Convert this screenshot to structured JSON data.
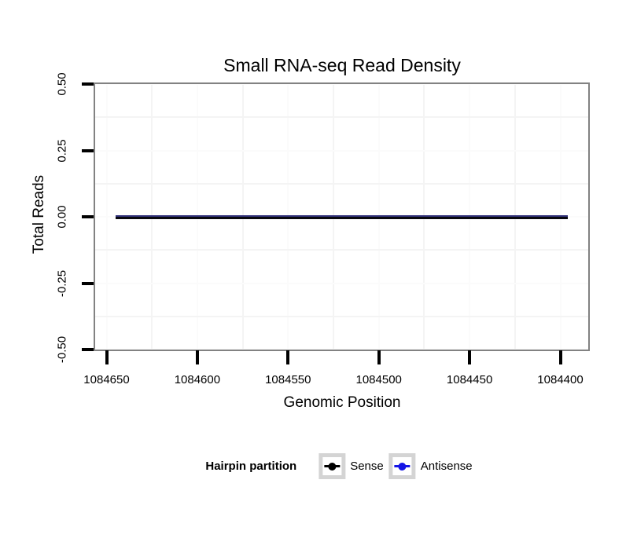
{
  "figure": {
    "background": "#ffffff"
  },
  "chart_data": {
    "type": "line",
    "title": "Small RNA-seq Read Density",
    "xlabel": "Genomic Position",
    "ylabel": "Total Reads",
    "x_axis": {
      "tick_values": [
        1084650,
        1084600,
        1084550,
        1084500,
        1084450,
        1084400
      ],
      "tick_labels": [
        "1084650",
        "1084600",
        "1084550",
        "1084500",
        "1084450",
        "1084400"
      ],
      "reversed": true,
      "range_left_to_right": [
        1084656,
        1084384
      ]
    },
    "y_axis": {
      "tick_values": [
        0.5,
        0.25,
        0,
        -0.25,
        -0.5
      ],
      "tick_labels": [
        "0.50",
        "0.25",
        "0.00",
        "-0.25",
        "-0.50"
      ],
      "ylim": [
        -0.5,
        0.5
      ]
    },
    "grid": {
      "visible": "minor-prominent",
      "major_color": "#fbfbfb",
      "minor_color": "#f4f4f4"
    },
    "panel": {
      "border_color": "#828282",
      "background": "#ffffff"
    },
    "series": [
      {
        "name": "Sense",
        "color": "#000000",
        "y_constant": 0,
        "x_start": 1084645,
        "x_end": 1084396
      },
      {
        "name": "Antisense",
        "color": "#1515e6",
        "y_constant": 0,
        "x_start": 1084645,
        "x_end": 1084396
      }
    ],
    "overlap_edge_color": "#32327b",
    "line_core_color": "#07070f",
    "legend": {
      "title": "Hairpin partition",
      "position": "bottom",
      "entries": [
        {
          "label": "Sense",
          "color": "#000000"
        },
        {
          "label": "Antisense",
          "color": "#1515e6"
        }
      ]
    }
  }
}
